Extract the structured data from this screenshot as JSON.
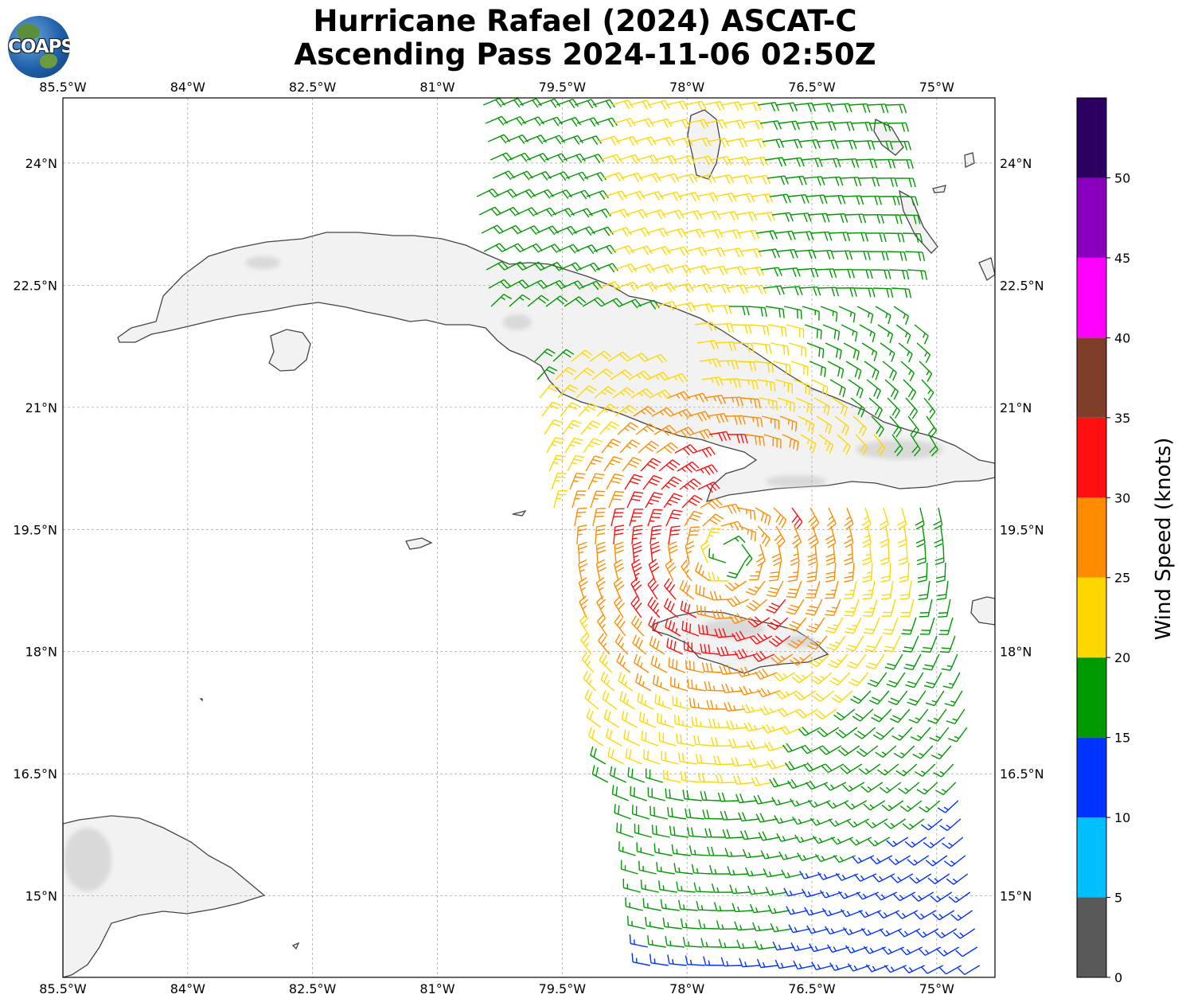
{
  "title": {
    "line1": "Hurricane Rafael (2024) ASCAT-C",
    "line2": "Ascending Pass 2024-11-06 02:50Z"
  },
  "logo": {
    "text": "COAPS"
  },
  "map": {
    "lon_range": [
      -85.5,
      -74.3
    ],
    "lat_range": [
      14.0,
      24.8
    ],
    "lon_ticks": [
      "85.5°W",
      "84°W",
      "82.5°W",
      "81°W",
      "79.5°W",
      "78°W",
      "76.5°W",
      "75°W"
    ],
    "lat_ticks": [
      "24°N",
      "22.5°N",
      "21°N",
      "19.5°N",
      "18°N",
      "16.5°N",
      "15°N"
    ],
    "gridlines": true,
    "regions": [
      "Cuba",
      "Isla de la Juventud",
      "Jamaica",
      "Cayman Islands",
      "Bahamas",
      "Haiti",
      "Honduras"
    ]
  },
  "colorbar": {
    "label": "Wind Speed (knots)",
    "ticks": [
      "0",
      "5",
      "10",
      "15",
      "20",
      "25",
      "30",
      "35",
      "40",
      "45",
      "50"
    ],
    "bins": [
      {
        "min": 0,
        "max": 5,
        "color": "#595959"
      },
      {
        "min": 5,
        "max": 10,
        "color": "#00bfff"
      },
      {
        "min": 10,
        "max": 15,
        "color": "#0033ff"
      },
      {
        "min": 15,
        "max": 20,
        "color": "#009900"
      },
      {
        "min": 20,
        "max": 25,
        "color": "#ffd700"
      },
      {
        "min": 25,
        "max": 30,
        "color": "#ff8c00"
      },
      {
        "min": 30,
        "max": 35,
        "color": "#ff0f0f"
      },
      {
        "min": 35,
        "max": 40,
        "color": "#803e2a"
      },
      {
        "min": 40,
        "max": 45,
        "color": "#ff00ff"
      },
      {
        "min": 45,
        "max": 50,
        "color": "#8800bb"
      },
      {
        "min": 50,
        "max": 55,
        "color": "#2b0060"
      }
    ]
  },
  "wind_field": {
    "description": "Circulation center near",
    "center_lon": -77.5,
    "center_lat": 19.2
  }
}
